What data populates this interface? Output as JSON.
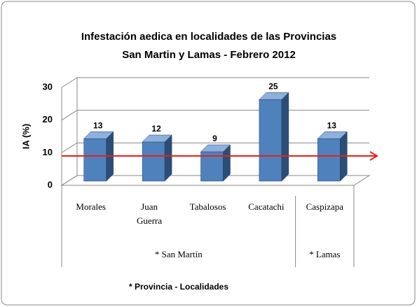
{
  "chart_data": {
    "type": "bar3d",
    "title": [
      "Infestación aedica en localidades de las Provincias",
      "San Martin y Lamas  - Febrero 2012"
    ],
    "y_label": "IA (%)",
    "categories": [
      "Morales",
      [
        "Juan",
        "Guerra"
      ],
      "Tabalosos",
      "Cacatachi",
      "Caspizapa"
    ],
    "values": [
      13,
      12,
      9,
      25,
      13
    ],
    "color": "#4f81bd",
    "groups": [
      {
        "label": "* San Martín",
        "count": 4
      },
      {
        "label": "* Lamas",
        "count": 1
      }
    ],
    "footer": "* Provincia - Localidades",
    "reference_line": {
      "value": 9,
      "color": "#e8201c"
    },
    "ylim": [
      0,
      30
    ],
    "yticks": [
      0,
      10,
      20,
      30
    ],
    "grid": true
  }
}
